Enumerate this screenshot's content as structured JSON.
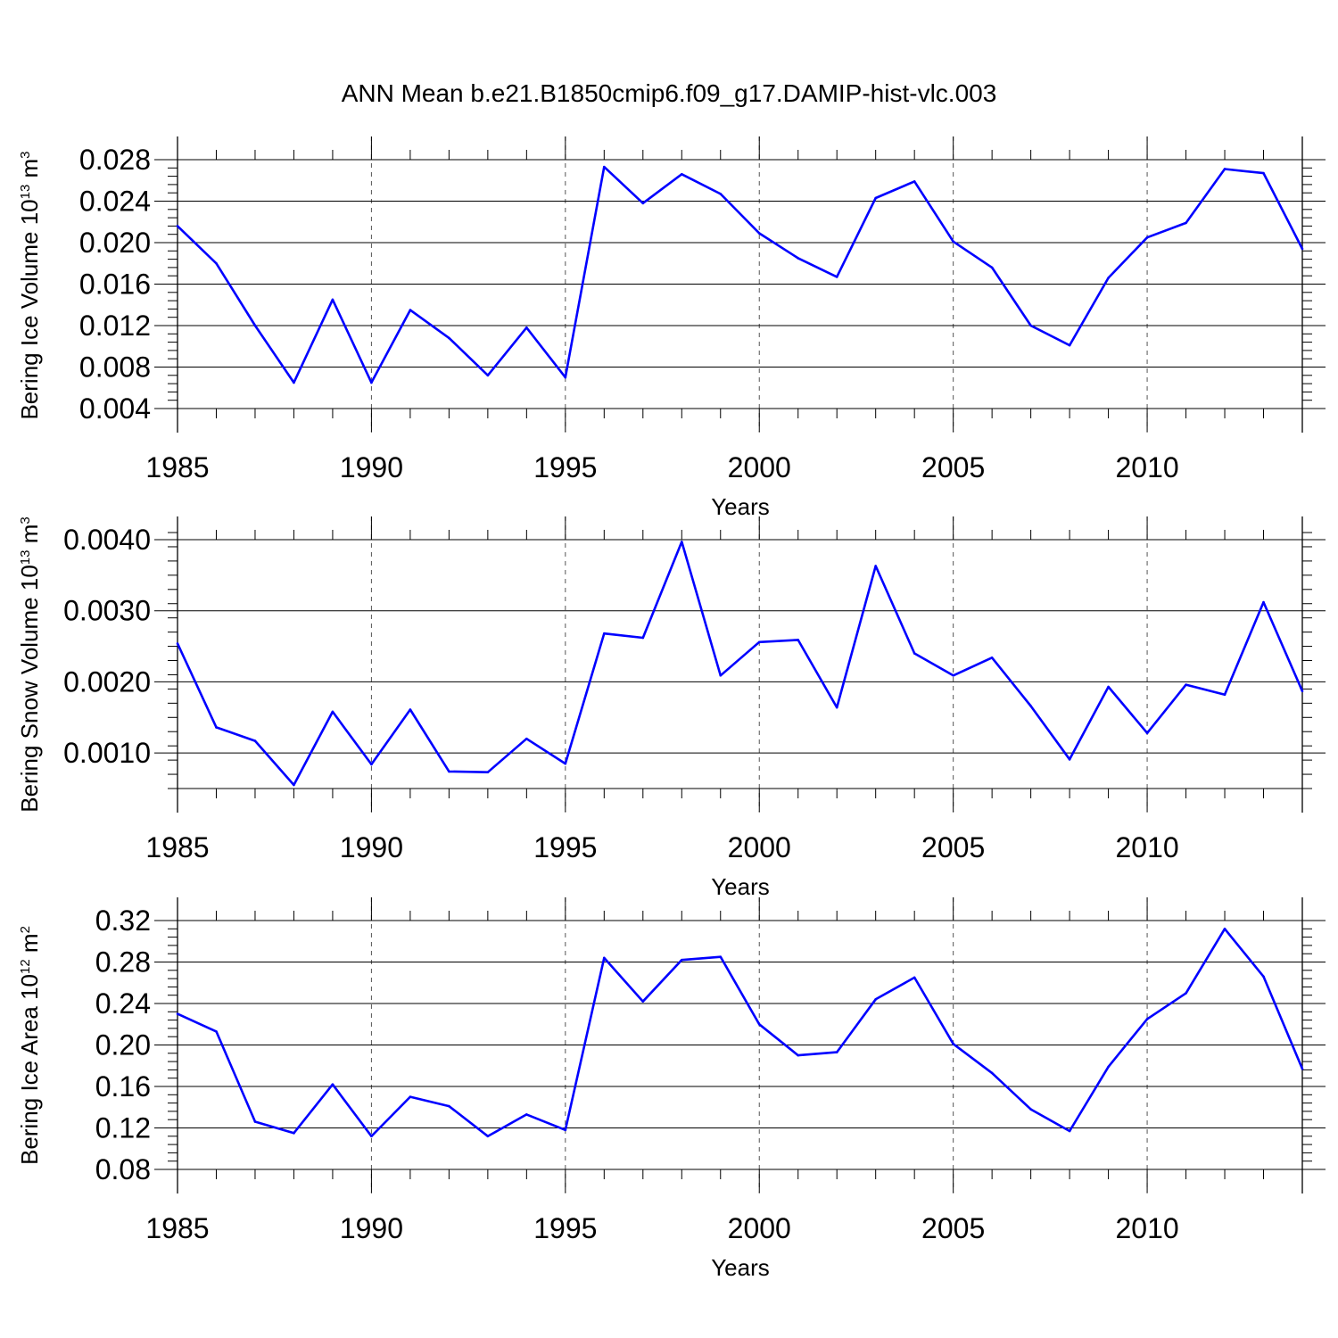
{
  "title": "ANN Mean b.e21.B1850cmip6.f09_g17.DAMIP-hist-vlc.003",
  "colors": {
    "line": "#0000ff",
    "axis": "#000000",
    "grid": "#555555"
  },
  "chart_data": [
    {
      "type": "line",
      "ylabel_main": "Bering Ice Volume 10",
      "ylabel_exp": "13",
      "ylabel_tail": " m",
      "ylabel_unit_exp": "3",
      "xlabel": "Years",
      "xlim": [
        1985,
        2014
      ],
      "ylim": [
        0.004,
        0.028
      ],
      "yticks": [
        0.004,
        0.008,
        0.012,
        0.016,
        0.02,
        0.024,
        0.028
      ],
      "yticklabels": [
        "0.004",
        "0.008",
        "0.012",
        "0.016",
        "0.020",
        "0.024",
        "0.028"
      ],
      "yminor_step": 0.0008,
      "xticks": [
        1985,
        1990,
        1995,
        2000,
        2005,
        2010
      ],
      "xticklabels": [
        "1985",
        "1990",
        "1995",
        "2000",
        "2005",
        "2010"
      ],
      "x": [
        1985,
        1986,
        1987,
        1988,
        1989,
        1990,
        1991,
        1992,
        1993,
        1994,
        1995,
        1996,
        1997,
        1998,
        1999,
        2000,
        2001,
        2002,
        2003,
        2004,
        2005,
        2006,
        2007,
        2008,
        2009,
        2010,
        2011,
        2012,
        2013,
        2014
      ],
      "values": [
        0.0216,
        0.018,
        0.012,
        0.0065,
        0.0145,
        0.0065,
        0.0135,
        0.0108,
        0.0072,
        0.0118,
        0.007,
        0.0273,
        0.0238,
        0.0266,
        0.0247,
        0.0209,
        0.0185,
        0.0167,
        0.0243,
        0.0259,
        0.0201,
        0.0176,
        0.012,
        0.0101,
        0.0166,
        0.0205,
        0.0219,
        0.0271,
        0.0267,
        0.0194
      ]
    },
    {
      "type": "line",
      "ylabel_main": "Bering Snow Volume 10",
      "ylabel_exp": "13",
      "ylabel_tail": " m",
      "ylabel_unit_exp": "3",
      "xlabel": "Years",
      "xlim": [
        1985,
        2014
      ],
      "ylim": [
        0.0005,
        0.004
      ],
      "yticks": [
        0.001,
        0.002,
        0.003,
        0.004
      ],
      "yticklabels": [
        "0.0010",
        "0.0020",
        "0.0030",
        "0.0040"
      ],
      "yminor_step": 0.0002,
      "xticks": [
        1985,
        1990,
        1995,
        2000,
        2005,
        2010
      ],
      "xticklabels": [
        "1985",
        "1990",
        "1995",
        "2000",
        "2005",
        "2010"
      ],
      "x": [
        1985,
        1986,
        1987,
        1988,
        1989,
        1990,
        1991,
        1992,
        1993,
        1994,
        1995,
        1996,
        1997,
        1998,
        1999,
        2000,
        2001,
        2002,
        2003,
        2004,
        2005,
        2006,
        2007,
        2008,
        2009,
        2010,
        2011,
        2012,
        2013,
        2014
      ],
      "values": [
        0.00254,
        0.00136,
        0.00117,
        0.00055,
        0.00158,
        0.00084,
        0.00161,
        0.00074,
        0.00073,
        0.0012,
        0.00085,
        0.00268,
        0.00262,
        0.00397,
        0.00209,
        0.00256,
        0.00259,
        0.00164,
        0.00363,
        0.0024,
        0.00209,
        0.00234,
        0.00166,
        0.00091,
        0.00193,
        0.00128,
        0.00196,
        0.00182,
        0.00312,
        0.00187
      ]
    },
    {
      "type": "line",
      "ylabel_main": "Bering Ice Area 10",
      "ylabel_exp": "12",
      "ylabel_tail": " m",
      "ylabel_unit_exp": "2",
      "xlabel": "Years",
      "xlim": [
        1985,
        2014
      ],
      "ylim": [
        0.08,
        0.32
      ],
      "yticks": [
        0.08,
        0.12,
        0.16,
        0.2,
        0.24,
        0.28,
        0.32
      ],
      "yticklabels": [
        "0.08",
        "0.12",
        "0.16",
        "0.20",
        "0.24",
        "0.28",
        "0.32"
      ],
      "yminor_step": 0.008,
      "xticks": [
        1985,
        1990,
        1995,
        2000,
        2005,
        2010
      ],
      "xticklabels": [
        "1985",
        "1990",
        "1995",
        "2000",
        "2005",
        "2010"
      ],
      "x": [
        1985,
        1986,
        1987,
        1988,
        1989,
        1990,
        1991,
        1992,
        1993,
        1994,
        1995,
        1996,
        1997,
        1998,
        1999,
        2000,
        2001,
        2002,
        2003,
        2004,
        2005,
        2006,
        2007,
        2008,
        2009,
        2010,
        2011,
        2012,
        2013,
        2014
      ],
      "values": [
        0.23,
        0.213,
        0.126,
        0.115,
        0.162,
        0.112,
        0.15,
        0.141,
        0.112,
        0.133,
        0.118,
        0.284,
        0.242,
        0.282,
        0.285,
        0.22,
        0.19,
        0.193,
        0.244,
        0.265,
        0.201,
        0.173,
        0.138,
        0.117,
        0.179,
        0.225,
        0.25,
        0.312,
        0.266,
        0.177
      ]
    }
  ]
}
